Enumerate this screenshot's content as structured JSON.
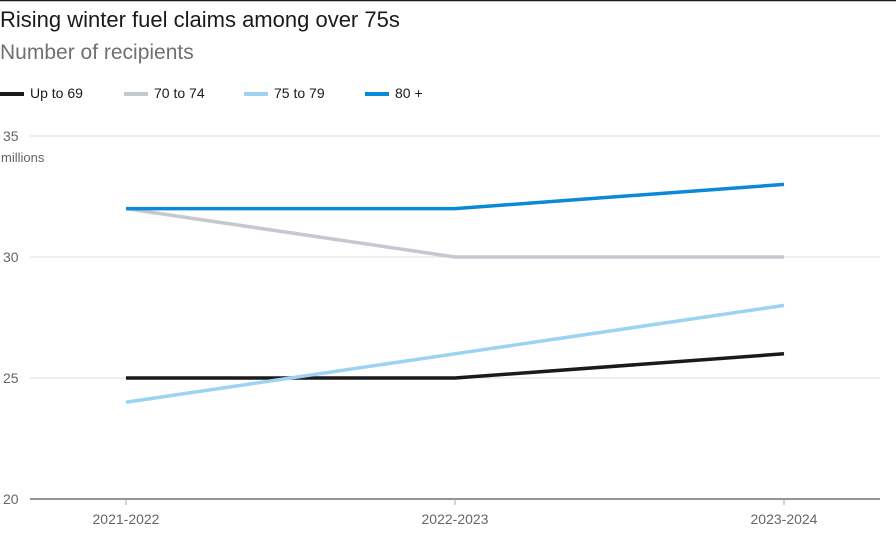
{
  "chart_data": {
    "type": "line",
    "title": "Rising winter fuel claims among over 75s",
    "subtitle": "Number of recipients",
    "ylabel": "millions",
    "xlabel": "",
    "x": [
      "2021-2022",
      "2022-2023",
      "2023-2024"
    ],
    "ylim": [
      20,
      35
    ],
    "yticks": [
      20,
      25,
      30,
      35
    ],
    "grid": true,
    "legend_position": "top-left",
    "series": [
      {
        "name": "Up to 69",
        "color": "#1a1a1a",
        "values": [
          25,
          25,
          26
        ]
      },
      {
        "name": "70 to 74",
        "color": "#c4c8cf",
        "values": [
          32,
          30,
          30
        ]
      },
      {
        "name": "75 to 79",
        "color": "#9dd3f2",
        "values": [
          24,
          26,
          28
        ]
      },
      {
        "name": "80 +",
        "color": "#0a8ad6",
        "values": [
          32,
          32,
          33
        ]
      }
    ]
  }
}
